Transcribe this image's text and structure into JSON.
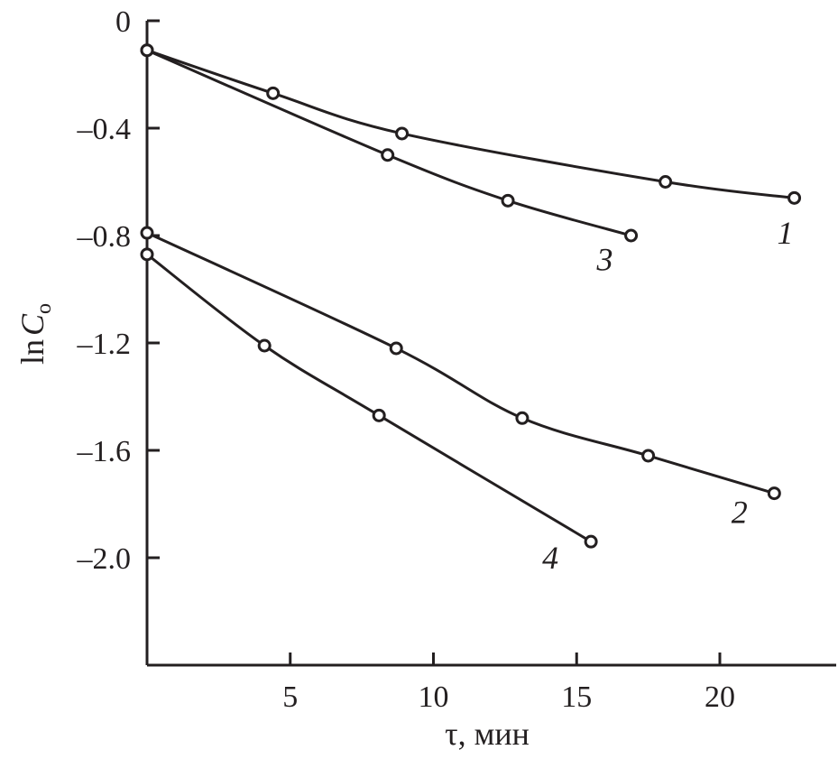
{
  "chart_data": {
    "type": "line",
    "title": "",
    "xlabel": "τ, мин",
    "ylabel_main": "ln",
    "ylabel_var": "C",
    "ylabel_sub": "o",
    "xlim": [
      0,
      24
    ],
    "ylim": [
      -2.4,
      0
    ],
    "grid": false,
    "x_ticks": [
      5,
      10,
      15,
      20
    ],
    "x_tick_labels": [
      "5",
      "10",
      "15",
      "20"
    ],
    "y_ticks": [
      0,
      -0.4,
      -0.8,
      -1.2,
      -1.6,
      -2.0
    ],
    "y_tick_labels": [
      "0",
      "–0.4",
      "–0.8",
      "–1.2",
      "–1.6",
      "–2.0"
    ],
    "series": [
      {
        "name": "1",
        "x": [
          0,
          4.4,
          8.9,
          18.1,
          22.6
        ],
        "y": [
          -0.11,
          -0.27,
          -0.42,
          -0.6,
          -0.66
        ]
      },
      {
        "name": "2",
        "x": [
          0,
          8.7,
          13.1,
          17.5,
          21.9
        ],
        "y": [
          -0.79,
          -1.22,
          -1.48,
          -1.62,
          -1.76
        ]
      },
      {
        "name": "3",
        "x": [
          0,
          8.4,
          12.6,
          16.9
        ],
        "y": [
          -0.11,
          -0.5,
          -0.67,
          -0.8
        ]
      },
      {
        "name": "4",
        "x": [
          0,
          4.1,
          8.1,
          15.5
        ],
        "y": [
          -0.87,
          -1.21,
          -1.47,
          -1.94
        ]
      }
    ],
    "curve_labels": [
      {
        "text": "1",
        "x": 22.0,
        "y": -0.83
      },
      {
        "text": "3",
        "x": 15.7,
        "y": -0.93
      },
      {
        "text": "2",
        "x": 20.4,
        "y": -1.87
      },
      {
        "text": "4",
        "x": 13.8,
        "y": -2.04
      }
    ]
  }
}
